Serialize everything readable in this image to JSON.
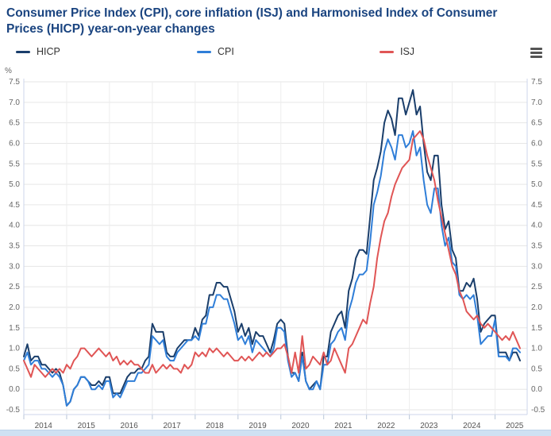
{
  "title": "Consumer Price Index (CPI), core inflation (ISJ) and Harmonised Index of Consumer Prices (HICP) year-on-year changes",
  "legend": [
    {
      "label": "HICP",
      "color": "#1a3e6b"
    },
    {
      "label": "CPI",
      "color": "#2f7ed8"
    },
    {
      "label": "ISJ",
      "color": "#e05555"
    }
  ],
  "menu_icon": "hamburger-menu-icon",
  "chart_data": {
    "type": "line",
    "title": "Consumer Price Index (CPI), core inflation (ISJ) and Harmonised Index of Consumer Prices (HICP) year-on-year changes",
    "unit": "%",
    "ylim": [
      -0.5,
      7.5
    ],
    "ytick_step": 0.5,
    "grid": true,
    "legend_position": "top",
    "x_years": [
      "2014",
      "2015",
      "2016",
      "2017",
      "2018",
      "2019",
      "2020",
      "2021",
      "2022",
      "2023",
      "2024",
      "2025"
    ],
    "months": [
      "2014-01",
      "2014-02",
      "2014-03",
      "2014-04",
      "2014-05",
      "2014-06",
      "2014-07",
      "2014-08",
      "2014-09",
      "2014-10",
      "2014-11",
      "2014-12",
      "2015-01",
      "2015-02",
      "2015-03",
      "2015-04",
      "2015-05",
      "2015-06",
      "2015-07",
      "2015-08",
      "2015-09",
      "2015-10",
      "2015-11",
      "2015-12",
      "2016-01",
      "2016-02",
      "2016-03",
      "2016-04",
      "2016-05",
      "2016-06",
      "2016-07",
      "2016-08",
      "2016-09",
      "2016-10",
      "2016-11",
      "2016-12",
      "2017-01",
      "2017-02",
      "2017-03",
      "2017-04",
      "2017-05",
      "2017-06",
      "2017-07",
      "2017-08",
      "2017-09",
      "2017-10",
      "2017-11",
      "2017-12",
      "2018-01",
      "2018-02",
      "2018-03",
      "2018-04",
      "2018-05",
      "2018-06",
      "2018-07",
      "2018-08",
      "2018-09",
      "2018-10",
      "2018-11",
      "2018-12",
      "2019-01",
      "2019-02",
      "2019-03",
      "2019-04",
      "2019-05",
      "2019-06",
      "2019-07",
      "2019-08",
      "2019-09",
      "2019-10",
      "2019-11",
      "2019-12",
      "2020-01",
      "2020-02",
      "2020-03",
      "2020-04",
      "2020-05",
      "2020-06",
      "2020-07",
      "2020-08",
      "2020-09",
      "2020-10",
      "2020-11",
      "2020-12",
      "2021-01",
      "2021-02",
      "2021-03",
      "2021-04",
      "2021-05",
      "2021-06",
      "2021-07",
      "2021-08",
      "2021-09",
      "2021-10",
      "2021-11",
      "2021-12",
      "2022-01",
      "2022-02",
      "2022-03",
      "2022-04",
      "2022-05",
      "2022-06",
      "2022-07",
      "2022-08",
      "2022-09",
      "2022-10",
      "2022-11",
      "2022-12",
      "2023-01",
      "2023-02",
      "2023-03",
      "2023-04",
      "2023-05",
      "2023-06",
      "2023-07",
      "2023-08",
      "2023-09",
      "2023-10",
      "2023-11",
      "2023-12",
      "2024-01",
      "2024-02",
      "2024-03",
      "2024-04",
      "2024-05",
      "2024-06",
      "2024-07",
      "2024-08",
      "2024-09",
      "2024-10",
      "2024-11",
      "2024-12",
      "2025-01",
      "2025-02",
      "2025-03",
      "2025-04",
      "2025-05",
      "2025-06",
      "2025-07",
      "2025-08"
    ],
    "series": [
      {
        "name": "HICP",
        "color": "#1a3e6b",
        "values": [
          0.8,
          1.1,
          0.7,
          0.8,
          0.8,
          0.6,
          0.6,
          0.5,
          0.4,
          0.5,
          0.4,
          0.1,
          -0.4,
          -0.3,
          0.0,
          0.1,
          0.3,
          0.3,
          0.2,
          0.1,
          0.1,
          0.2,
          0.1,
          0.3,
          0.3,
          -0.1,
          -0.1,
          -0.1,
          0.1,
          0.3,
          0.4,
          0.4,
          0.5,
          0.5,
          0.7,
          0.8,
          1.6,
          1.4,
          1.4,
          1.4,
          0.9,
          0.8,
          0.8,
          1.0,
          1.1,
          1.2,
          1.2,
          1.2,
          1.5,
          1.3,
          1.7,
          1.8,
          2.3,
          2.3,
          2.6,
          2.6,
          2.5,
          2.5,
          2.2,
          1.9,
          1.4,
          1.6,
          1.3,
          1.5,
          1.1,
          1.4,
          1.3,
          1.3,
          1.1,
          0.9,
          1.2,
          1.6,
          1.7,
          1.6,
          0.8,
          0.4,
          0.4,
          0.2,
          0.9,
          0.2,
          0.0,
          0.1,
          0.2,
          0.0,
          0.8,
          0.8,
          1.4,
          1.6,
          1.8,
          1.9,
          1.5,
          2.4,
          2.7,
          3.2,
          3.4,
          3.4,
          3.3,
          4.2,
          5.1,
          5.4,
          5.8,
          6.5,
          6.8,
          6.6,
          6.2,
          7.1,
          7.1,
          6.7,
          7.0,
          7.3,
          6.7,
          6.9,
          6.0,
          5.3,
          5.1,
          5.7,
          5.7,
          4.5,
          3.9,
          4.1,
          3.4,
          3.2,
          2.4,
          2.4,
          2.6,
          2.5,
          2.7,
          2.2,
          1.4,
          1.6,
          1.7,
          1.8,
          1.8,
          0.9,
          0.9,
          0.9,
          0.7,
          0.9,
          0.9,
          0.7
        ]
      },
      {
        "name": "CPI",
        "color": "#2f7ed8",
        "values": [
          0.7,
          0.9,
          0.6,
          0.7,
          0.7,
          0.5,
          0.5,
          0.4,
          0.3,
          0.4,
          0.3,
          0.1,
          -0.4,
          -0.3,
          0.0,
          0.1,
          0.3,
          0.3,
          0.2,
          0.0,
          0.0,
          0.1,
          0.0,
          0.2,
          0.2,
          -0.2,
          -0.1,
          -0.2,
          0.0,
          0.2,
          0.2,
          0.2,
          0.4,
          0.4,
          0.5,
          0.6,
          1.3,
          1.2,
          1.1,
          1.2,
          0.8,
          0.7,
          0.7,
          0.9,
          1.0,
          1.1,
          1.2,
          1.2,
          1.3,
          1.2,
          1.6,
          1.6,
          2.0,
          2.0,
          2.3,
          2.3,
          2.2,
          2.2,
          1.9,
          1.6,
          1.2,
          1.3,
          1.1,
          1.3,
          0.9,
          1.2,
          1.1,
          1.0,
          0.9,
          0.8,
          1.0,
          1.5,
          1.5,
          1.4,
          0.7,
          0.3,
          0.4,
          0.2,
          0.8,
          0.2,
          0.0,
          0.0,
          0.2,
          0.0,
          0.6,
          0.6,
          1.1,
          1.2,
          1.4,
          1.5,
          1.2,
          1.9,
          2.2,
          2.6,
          2.8,
          2.8,
          2.9,
          3.6,
          4.5,
          4.8,
          5.2,
          5.8,
          6.1,
          5.9,
          5.6,
          6.2,
          6.2,
          5.9,
          6.0,
          6.3,
          5.7,
          5.9,
          5.1,
          4.5,
          4.3,
          4.9,
          4.9,
          4.0,
          3.5,
          3.7,
          3.1,
          3.0,
          2.3,
          2.2,
          2.3,
          2.2,
          2.3,
          1.8,
          1.1,
          1.2,
          1.3,
          1.3,
          1.7,
          0.8,
          0.8,
          0.8,
          0.7,
          1.0,
          1.0,
          0.9
        ]
      },
      {
        "name": "ISJ",
        "color": "#e05555",
        "values": [
          0.7,
          0.5,
          0.3,
          0.6,
          0.5,
          0.4,
          0.3,
          0.4,
          0.5,
          0.4,
          0.5,
          0.4,
          0.6,
          0.5,
          0.7,
          0.8,
          1.0,
          1.0,
          0.9,
          0.8,
          0.9,
          1.0,
          0.9,
          0.8,
          0.9,
          0.7,
          0.8,
          0.6,
          0.7,
          0.6,
          0.7,
          0.6,
          0.6,
          0.5,
          0.4,
          0.4,
          0.6,
          0.4,
          0.5,
          0.6,
          0.5,
          0.6,
          0.5,
          0.5,
          0.4,
          0.6,
          0.5,
          0.6,
          0.9,
          0.8,
          0.9,
          0.8,
          1.0,
          0.9,
          1.0,
          0.9,
          0.8,
          0.9,
          0.8,
          0.7,
          0.7,
          0.8,
          0.7,
          0.8,
          0.7,
          0.8,
          0.9,
          0.8,
          0.9,
          0.8,
          0.9,
          1.0,
          1.0,
          1.1,
          0.8,
          0.4,
          0.9,
          0.4,
          1.3,
          0.5,
          0.6,
          0.8,
          0.7,
          0.6,
          0.9,
          0.6,
          0.7,
          1.0,
          0.8,
          0.6,
          0.4,
          1.0,
          1.1,
          1.3,
          1.5,
          1.7,
          1.6,
          2.1,
          2.5,
          3.2,
          3.7,
          4.1,
          4.3,
          4.7,
          5.0,
          5.2,
          5.4,
          5.5,
          5.6,
          6.1,
          6.2,
          6.3,
          6.1,
          5.7,
          5.4,
          5.1,
          4.6,
          4.2,
          3.8,
          3.4,
          3.0,
          2.8,
          2.4,
          2.2,
          1.9,
          1.8,
          1.7,
          1.8,
          1.6,
          1.5,
          1.6,
          1.5,
          1.4,
          1.3,
          1.2,
          1.3,
          1.2,
          1.4,
          1.2,
          1.0
        ]
      }
    ]
  }
}
